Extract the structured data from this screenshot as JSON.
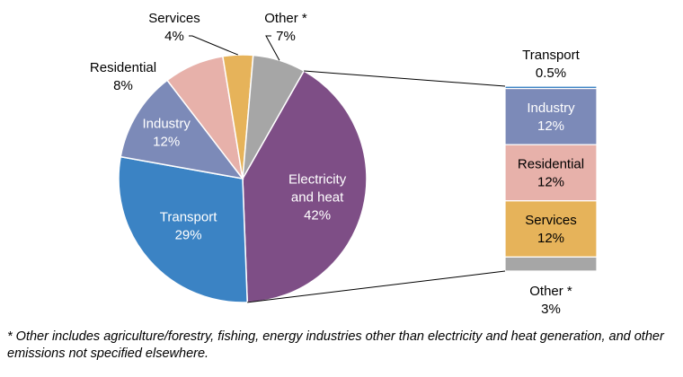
{
  "chart_data": {
    "type": "pie",
    "title": "",
    "pie": {
      "slices": [
        {
          "name": "Electricity and heat",
          "label_lines": [
            "Electricity",
            "and heat",
            "42%"
          ],
          "value": 42,
          "color": "#7e4e86",
          "text_color": "#ffffff"
        },
        {
          "name": "Transport",
          "label_lines": [
            "Transport",
            "29%"
          ],
          "value": 29,
          "color": "#3b83c4",
          "text_color": "#ffffff"
        },
        {
          "name": "Industry",
          "label_lines": [
            "Industry",
            "12%"
          ],
          "value": 12,
          "color": "#7c8ab8",
          "text_color": "#ffffff"
        },
        {
          "name": "Residential",
          "label_lines": [
            "Residential",
            "8%"
          ],
          "value": 8,
          "color": "#e7b1aa",
          "text_color": "#000000"
        },
        {
          "name": "Services",
          "label_lines": [
            "Services",
            "4%"
          ],
          "value": 4,
          "color": "#e6b35a",
          "text_color": "#000000"
        },
        {
          "name": "Other *",
          "label_lines": [
            "Other *",
            "7%"
          ],
          "value": 7,
          "color": "#a6a6a6",
          "text_color": "#000000"
        }
      ]
    },
    "breakdown": {
      "of": "Electricity and heat",
      "segments": [
        {
          "name": "Transport",
          "label_lines": [
            "Transport",
            "0.5%"
          ],
          "value": 0.5,
          "color": "#3b83c4",
          "text_color": "#000000"
        },
        {
          "name": "Industry",
          "label_lines": [
            "Industry",
            "12%"
          ],
          "value": 12,
          "color": "#7c8ab8",
          "text_color": "#ffffff"
        },
        {
          "name": "Residential",
          "label_lines": [
            "Residential",
            "12%"
          ],
          "value": 12,
          "color": "#e7b1aa",
          "text_color": "#000000"
        },
        {
          "name": "Services",
          "label_lines": [
            "Services",
            "12%"
          ],
          "value": 12,
          "color": "#e6b35a",
          "text_color": "#000000"
        },
        {
          "name": "Other *",
          "label_lines": [
            "Other *",
            "3%"
          ],
          "value": 3,
          "color": "#a6a6a6",
          "text_color": "#000000"
        }
      ]
    }
  },
  "footnote": "* Other includes agriculture/forestry, fishing, energy industries other than electricity and heat generation, and other emissions not specified elsewhere."
}
